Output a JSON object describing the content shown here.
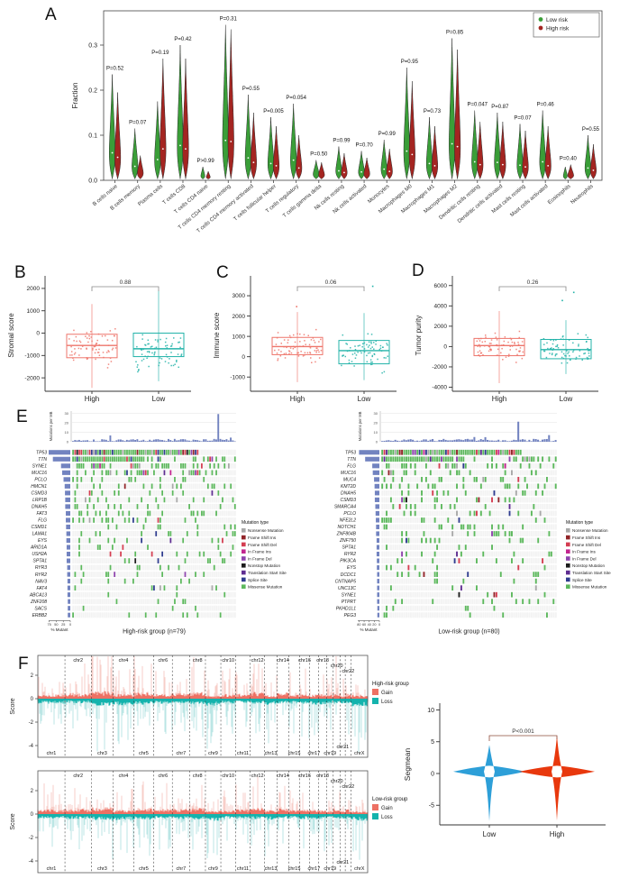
{
  "panel_labels": [
    "A",
    "B",
    "C",
    "D",
    "E",
    "F"
  ],
  "chart_data": [
    {
      "id": "A",
      "type": "violin",
      "ylabel": "Fraction",
      "yticks": [
        0.0,
        0.1,
        0.2,
        0.3
      ],
      "ylim": [
        0,
        0.375
      ],
      "legend_position": "top-right",
      "legend": [
        {
          "name": "Low risk",
          "color": "#3a9e38"
        },
        {
          "name": "High risk",
          "color": "#a42521"
        }
      ],
      "categories": [
        "B cells naive",
        "B cells memory",
        "Plasma cells",
        "T cells CD8",
        "T cells CD4 naive",
        "T cells CD4 memory resting",
        "T cells CD4 memory activated",
        "T cells follicular helper",
        "T cells regulatory",
        "T cells gamma delta",
        "Nk cells resting",
        "Nk cells activated",
        "Monocytes",
        "Macrophages M0",
        "Macrophages M1",
        "Macrophages M2",
        "Dendritic cells resting",
        "Dendritic cells activated",
        "Mast cells resting",
        "Mast cells activated",
        "Eosinophils",
        "Neutrophils"
      ],
      "p_values": [
        "P=0.52",
        "P=0.07",
        "P=0.19",
        "P=0.42",
        "P>0.99",
        "P=0.31",
        "P=0.55",
        "P=0.005",
        "P=0.054",
        "P=0.50",
        "P=0.99",
        "P=0.70",
        "P=0.99",
        "P=0.95",
        "P=0.73",
        "P=0.85",
        "P=0.047",
        "P=0.87",
        "P=0.07",
        "P=0.46",
        "P=0.40",
        "P=0.55"
      ],
      "series": [
        {
          "name": "Low risk",
          "peak_fraction": [
            0.235,
            0.115,
            0.175,
            0.3,
            0.03,
            0.345,
            0.19,
            0.14,
            0.17,
            0.045,
            0.075,
            0.065,
            0.09,
            0.25,
            0.14,
            0.315,
            0.155,
            0.15,
            0.125,
            0.155,
            0.03,
            0.1
          ]
        },
        {
          "name": "High risk",
          "peak_fraction": [
            0.195,
            0.055,
            0.27,
            0.27,
            0.02,
            0.335,
            0.15,
            0.12,
            0.1,
            0.04,
            0.06,
            0.05,
            0.07,
            0.22,
            0.12,
            0.29,
            0.13,
            0.13,
            0.11,
            0.12,
            0.035,
            0.08
          ]
        }
      ]
    },
    {
      "id": "B",
      "type": "boxplot",
      "ylabel": "Stromal score",
      "p_value": "0.88",
      "yticks": [
        -2000,
        -1000,
        0,
        1000,
        2000
      ],
      "ylim": [
        -2600,
        2400
      ],
      "groups": [
        {
          "name": "High",
          "color": "#EE756B",
          "median": -550,
          "q1": -1100,
          "q3": -50,
          "lo": -2450,
          "hi": 1300,
          "outliers": []
        },
        {
          "name": "Low",
          "color": "#23B3A9",
          "median": -700,
          "q1": -1050,
          "q3": 0,
          "lo": -2150,
          "hi": 1900,
          "outliers": []
        }
      ]
    },
    {
      "id": "C",
      "type": "boxplot",
      "ylabel": "Immune score",
      "p_value": "0.06",
      "yticks": [
        -1000,
        0,
        1000,
        2000,
        3000
      ],
      "ylim": [
        -1700,
        3800
      ],
      "groups": [
        {
          "name": "High",
          "color": "#EE756B",
          "median": 500,
          "q1": 100,
          "q3": 950,
          "lo": -1250,
          "hi": 2200,
          "outliers": [
            2500
          ]
        },
        {
          "name": "Low",
          "color": "#23B3A9",
          "median": 300,
          "q1": -350,
          "q3": 800,
          "lo": -1150,
          "hi": 2150,
          "outliers": [
            3500
          ]
        }
      ]
    },
    {
      "id": "D",
      "type": "boxplot",
      "ylabel": "Tumor purity",
      "p_value": "0.26",
      "yticks": [
        -4000,
        -2000,
        0,
        2000,
        4000,
        6000
      ],
      "ylim": [
        -4400,
        6600
      ],
      "groups": [
        {
          "name": "High",
          "color": "#EE756B",
          "median": 100,
          "q1": -900,
          "q3": 800,
          "lo": -3600,
          "hi": 3500,
          "outliers": []
        },
        {
          "name": "Low",
          "color": "#23B3A9",
          "median": -300,
          "q1": -1200,
          "q3": 700,
          "lo": -2700,
          "hi": 2600,
          "outliers": [
            5400,
            4600
          ]
        }
      ]
    },
    {
      "id": "E-left",
      "type": "oncoprint",
      "group_label": "High-risk group (n=79)",
      "n_samples": 79,
      "tmb_ylabel": "Mutations per MB",
      "tmb_yticks": [
        0,
        10,
        20,
        30
      ],
      "tmb_spike": {
        "col": 70,
        "value": 29
      },
      "pct_label": "% Mutant",
      "pct_axis": [
        75,
        50,
        25,
        0
      ],
      "genes": [
        {
          "name": "TP53",
          "pct": 77
        },
        {
          "name": "TTN",
          "pct": 62
        },
        {
          "name": "SYNE1",
          "pct": 33
        },
        {
          "name": "MUC16",
          "pct": 29
        },
        {
          "name": "PCLO",
          "pct": 24
        },
        {
          "name": "HMCN1",
          "pct": 20
        },
        {
          "name": "CSMD3",
          "pct": 19
        },
        {
          "name": "LRP1B",
          "pct": 18
        },
        {
          "name": "DNAH5",
          "pct": 18
        },
        {
          "name": "FAT3",
          "pct": 16
        },
        {
          "name": "FLG",
          "pct": 16
        },
        {
          "name": "CSMD1",
          "pct": 15
        },
        {
          "name": "LAMA1",
          "pct": 14
        },
        {
          "name": "EYS",
          "pct": 14
        },
        {
          "name": "ARID1A",
          "pct": 13
        },
        {
          "name": "USH2A",
          "pct": 13
        },
        {
          "name": "SPTA1",
          "pct": 13
        },
        {
          "name": "RYR3",
          "pct": 11
        },
        {
          "name": "RYR2",
          "pct": 11
        },
        {
          "name": "NAV3",
          "pct": 10
        },
        {
          "name": "FAT4",
          "pct": 10
        },
        {
          "name": "ABCA13",
          "pct": 10
        },
        {
          "name": "ZNF208",
          "pct": 9
        },
        {
          "name": "SACS",
          "pct": 9
        },
        {
          "name": "ERBB2",
          "pct": 9
        }
      ]
    },
    {
      "id": "E-right",
      "type": "oncoprint",
      "group_label": "Low-risk group (n=80)",
      "n_samples": 80,
      "tmb_ylabel": "Mutations per MB",
      "tmb_yticks": [
        0,
        10,
        20,
        30
      ],
      "tmb_spike": {
        "col": 62,
        "value": 21
      },
      "pct_label": "% Mutant",
      "pct_axis": [
        80,
        60,
        40,
        20,
        0
      ],
      "genes": [
        {
          "name": "TP53",
          "pct": 80
        },
        {
          "name": "TTN",
          "pct": 56
        },
        {
          "name": "FLG",
          "pct": 28
        },
        {
          "name": "MUC16",
          "pct": 26
        },
        {
          "name": "MUC4",
          "pct": 21
        },
        {
          "name": "KMT2D",
          "pct": 19
        },
        {
          "name": "DNAH5",
          "pct": 18
        },
        {
          "name": "CSMD3",
          "pct": 18
        },
        {
          "name": "SMARCA4",
          "pct": 16
        },
        {
          "name": "PCLO",
          "pct": 15
        },
        {
          "name": "NFE2L2",
          "pct": 14
        },
        {
          "name": "NOTCH1",
          "pct": 13
        },
        {
          "name": "ZNF804B",
          "pct": 13
        },
        {
          "name": "ZNF750",
          "pct": 11
        },
        {
          "name": "SPTA1",
          "pct": 11
        },
        {
          "name": "RYR2",
          "pct": 11
        },
        {
          "name": "PIK3CA",
          "pct": 10
        },
        {
          "name": "EYS",
          "pct": 10
        },
        {
          "name": "DCDC1",
          "pct": 9
        },
        {
          "name": "CNTNAP5",
          "pct": 9
        },
        {
          "name": "UNC13C",
          "pct": 9
        },
        {
          "name": "SYNE1",
          "pct": 9
        },
        {
          "name": "PTPRT",
          "pct": 9
        },
        {
          "name": "PKHD1L1",
          "pct": 8
        },
        {
          "name": "PEG3",
          "pct": 8
        }
      ]
    },
    {
      "id": "E-legend",
      "title": "Mutation type",
      "items": [
        {
          "name": "Nonsense Mutation",
          "color": "#a8a8a8"
        },
        {
          "name": "Frame Shift Ins",
          "color": "#912428"
        },
        {
          "name": "Frame Shift Del",
          "color": "#d43d51"
        },
        {
          "name": "In Frame Ins",
          "color": "#c2258f"
        },
        {
          "name": "In Frame Del",
          "color": "#8e44ad"
        },
        {
          "name": "Nonstop Mutation",
          "color": "#1c1c1c"
        },
        {
          "name": "Translation Start Site",
          "color": "#5e2d91"
        },
        {
          "name": "Splice Site",
          "color": "#2f3c8f"
        },
        {
          "name": "Missense Mutation",
          "color": "#5cb85c"
        }
      ]
    },
    {
      "id": "F-high",
      "type": "area-cnv",
      "ylabel": "Score",
      "yticks": [
        2,
        0,
        -2,
        -4
      ],
      "legend_title": "High-risk group",
      "legend": [
        {
          "name": "Gain",
          "color": "#ED7164"
        },
        {
          "name": "Loss",
          "color": "#14B3AD"
        }
      ],
      "chromosomes": [
        "chr1",
        "chr2",
        "chr3",
        "chr4",
        "chr5",
        "chr6",
        "chr7",
        "chr8",
        "chr9",
        "chr10",
        "chr11",
        "chr12",
        "chr13",
        "chr14",
        "chr15",
        "chr16",
        "chr17",
        "chr18",
        "chr19",
        "chr20",
        "chr21",
        "chr22",
        "chrX"
      ],
      "chrom_width_frac": [
        0.081,
        0.079,
        0.065,
        0.062,
        0.059,
        0.056,
        0.052,
        0.047,
        0.046,
        0.044,
        0.044,
        0.043,
        0.037,
        0.035,
        0.033,
        0.029,
        0.027,
        0.025,
        0.019,
        0.021,
        0.015,
        0.017,
        0.05
      ],
      "gain_intensity": [
        0.8,
        1.1,
        1.5,
        0.9,
        1.2,
        0.9,
        1.1,
        1.3,
        0.7,
        0.9,
        0.9,
        1.3,
        0.7,
        1.2,
        0.8,
        0.9,
        0.8,
        0.9,
        0.8,
        1.4,
        0.6,
        1.1,
        0.7
      ],
      "loss_intensity": [
        0.9,
        0.8,
        1.3,
        1.2,
        1.1,
        0.9,
        0.8,
        1.0,
        1.3,
        0.9,
        0.8,
        0.9,
        1.2,
        0.9,
        0.9,
        1.0,
        1.1,
        1.1,
        0.8,
        1.0,
        0.9,
        0.9,
        1.4
      ]
    },
    {
      "id": "F-low",
      "type": "area-cnv",
      "ylabel": "Score",
      "yticks": [
        2,
        0,
        -2,
        -4
      ],
      "legend_title": "Low-risk group",
      "legend": [
        {
          "name": "Gain",
          "color": "#ED7164"
        },
        {
          "name": "Loss",
          "color": "#14B3AD"
        }
      ],
      "chromosomes": [
        "chr1",
        "chr2",
        "chr3",
        "chr4",
        "chr5",
        "chr6",
        "chr7",
        "chr8",
        "chr9",
        "chr10",
        "chr11",
        "chr12",
        "chr13",
        "chr14",
        "chr15",
        "chr16",
        "chr17",
        "chr18",
        "chr19",
        "chr20",
        "chr21",
        "chr22",
        "chrX"
      ],
      "chrom_width_frac": [
        0.081,
        0.079,
        0.065,
        0.062,
        0.059,
        0.056,
        0.052,
        0.047,
        0.046,
        0.044,
        0.044,
        0.043,
        0.037,
        0.035,
        0.033,
        0.029,
        0.027,
        0.025,
        0.019,
        0.021,
        0.015,
        0.017,
        0.05
      ],
      "gain_intensity": [
        0.9,
        1.0,
        1.4,
        0.8,
        1.1,
        1.0,
        1.0,
        1.2,
        0.7,
        0.8,
        0.9,
        1.2,
        0.8,
        1.1,
        0.8,
        0.9,
        0.8,
        0.8,
        0.7,
        1.2,
        0.6,
        1.0,
        0.6
      ],
      "loss_intensity": [
        0.8,
        0.9,
        1.2,
        1.1,
        1.0,
        0.9,
        0.9,
        1.0,
        1.2,
        0.9,
        0.9,
        0.9,
        1.1,
        0.9,
        0.8,
        1.0,
        1.0,
        1.0,
        0.8,
        0.9,
        0.8,
        0.9,
        1.2
      ]
    },
    {
      "id": "F-violin",
      "type": "violin",
      "ylabel": "Segmean",
      "p_value": "P<0.001",
      "yticks": [
        10,
        5,
        0,
        -5
      ],
      "ylim": [
        -8.5,
        11
      ],
      "groups": [
        {
          "name": "Low",
          "color": "#2D9FD8",
          "center": 0.3,
          "max": 4.5,
          "min": -7.5
        },
        {
          "name": "High",
          "color": "#E8380D",
          "center": 0.3,
          "max": 6.0,
          "min": -7.4
        }
      ]
    }
  ]
}
